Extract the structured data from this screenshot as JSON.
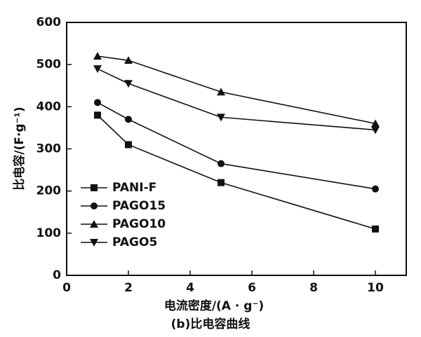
{
  "chart_data": {
    "type": "line",
    "x_label": "电流密度/(A · g⁻)",
    "y_label": "比电容/(F·g⁻¹)",
    "caption": "(b)比电容曲线",
    "x": [
      1,
      2,
      5,
      10
    ],
    "series": [
      {
        "name": "PANI-F",
        "color": "#111111",
        "marker": "square",
        "values": [
          380,
          310,
          220,
          110
        ]
      },
      {
        "name": "PAGO15",
        "color": "#111111",
        "marker": "circle",
        "values": [
          410,
          370,
          265,
          205
        ]
      },
      {
        "name": "PAGO10",
        "color": "#111111",
        "marker": "triangle-up",
        "values": [
          520,
          510,
          435,
          360
        ]
      },
      {
        "name": "PAGO5",
        "color": "#111111",
        "marker": "triangle-down",
        "values": [
          490,
          455,
          375,
          345
        ]
      }
    ],
    "xlim": [
      0,
      11
    ],
    "xticks": [
      0,
      2,
      4,
      6,
      8,
      10
    ],
    "ylim": [
      0,
      600
    ],
    "yticks": [
      0,
      100,
      200,
      300,
      400,
      500,
      600
    ],
    "grid": false,
    "legend": "lower left"
  }
}
